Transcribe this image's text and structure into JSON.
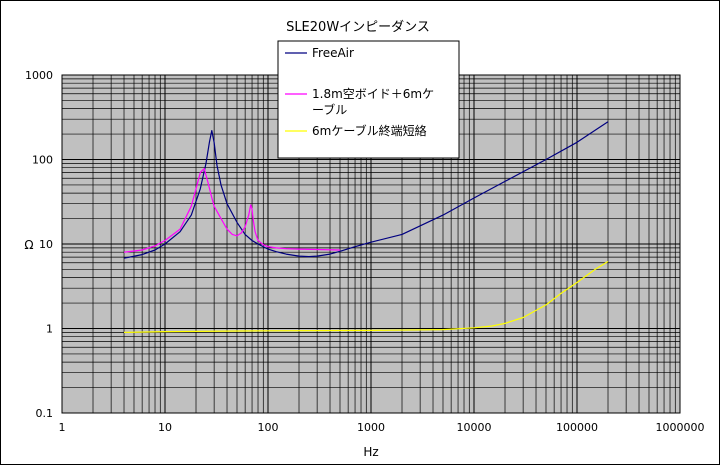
{
  "chart_data": {
    "type": "line",
    "title": "SLE20Wインピーダンス",
    "xlabel": "Hz",
    "ylabel": "Ω",
    "x_scale": "log",
    "y_scale": "log",
    "xlim": [
      1,
      1000000
    ],
    "ylim": [
      0.1,
      1000
    ],
    "grid": true,
    "plot_background": "#c0c0c0",
    "legend_position": "top-center",
    "x_ticks": [
      "1",
      "10",
      "100",
      "1000",
      "10000",
      "100000",
      "1000000"
    ],
    "y_ticks": [
      "0.1",
      "1",
      "10",
      "100",
      "1000"
    ],
    "series": [
      {
        "name": "FreeAir",
        "color": "#000080",
        "x": [
          4,
          6,
          8,
          10,
          14,
          18,
          22,
          25,
          27,
          28.5,
          30,
          32,
          35,
          40,
          50,
          60,
          70,
          80,
          100,
          120,
          150,
          200,
          250,
          300,
          400,
          500,
          700,
          1000,
          2000,
          5000,
          10000,
          20000,
          50000,
          100000,
          200000
        ],
        "y": [
          6.8,
          7.5,
          8.5,
          10,
          14,
          22,
          45,
          90,
          160,
          220,
          160,
          85,
          50,
          30,
          18,
          13,
          11,
          10,
          8.7,
          8.1,
          7.6,
          7.2,
          7.1,
          7.2,
          7.6,
          8.2,
          9.3,
          10.5,
          13,
          22,
          35,
          55,
          100,
          160,
          280
        ]
      },
      {
        "name": "1.8m空ボイド＋6mケーブル",
        "color": "#ff00ff",
        "x": [
          4,
          6,
          8,
          10,
          14,
          18,
          20,
          22,
          24,
          26,
          28,
          30,
          35,
          40,
          45,
          50,
          55,
          60,
          65,
          68,
          70,
          72,
          75,
          80,
          90,
          100,
          120,
          150,
          200,
          300,
          500
        ],
        "y": [
          8,
          8.5,
          9.5,
          11,
          15,
          28,
          45,
          70,
          78,
          55,
          38,
          28,
          20,
          15,
          13,
          12.5,
          13.5,
          16,
          22,
          29,
          26,
          19,
          14,
          11,
          9.8,
          9.3,
          9,
          8.8,
          8.7,
          8.6,
          8.5
        ]
      },
      {
        "name": "6mケーブル終端短絡",
        "color": "#ffff00",
        "x": [
          4,
          10,
          100,
          1000,
          5000,
          10000,
          15000,
          20000,
          30000,
          50000,
          70000,
          100000,
          150000,
          200000
        ],
        "y": [
          0.9,
          0.92,
          0.94,
          0.95,
          0.97,
          1.02,
          1.07,
          1.15,
          1.35,
          1.9,
          2.6,
          3.5,
          5,
          6.2
        ]
      }
    ]
  }
}
